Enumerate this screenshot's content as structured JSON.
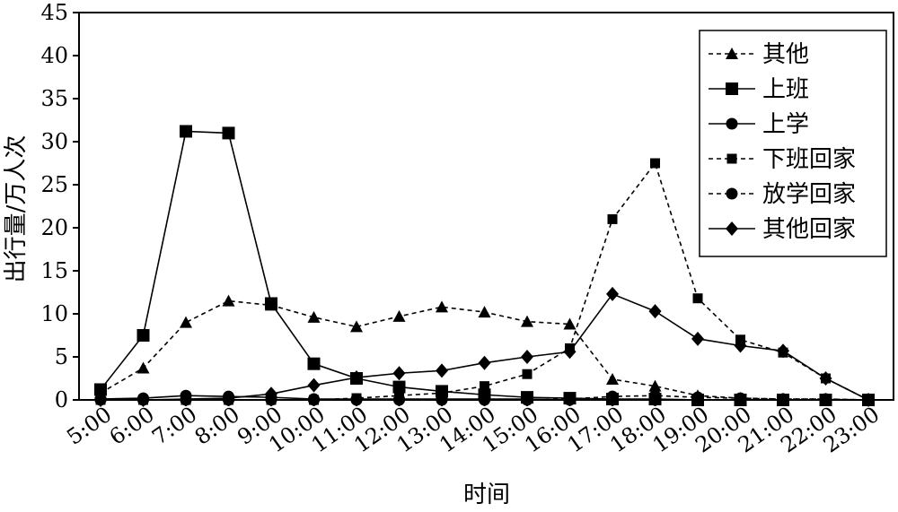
{
  "chart_data": {
    "type": "line",
    "xlabel": "时间",
    "ylabel": "出行量/万人次",
    "ylim": [
      0,
      45
    ],
    "yticks": [
      0,
      5,
      10,
      15,
      20,
      25,
      30,
      35,
      40,
      45
    ],
    "categories": [
      "5:00",
      "6:00",
      "7:00",
      "8:00",
      "9:00",
      "10:00",
      "11:00",
      "12:00",
      "13:00",
      "14:00",
      "15:00",
      "16:00",
      "17:00",
      "18:00",
      "19:00",
      "20:00",
      "21:00",
      "22:00",
      "23:00"
    ],
    "legend_position": "top-right",
    "series": [
      {
        "name": "其他",
        "marker": "triangle",
        "dashed": true,
        "values": [
          0.8,
          3.7,
          9.0,
          11.5,
          11.0,
          9.6,
          8.5,
          9.7,
          10.8,
          10.2,
          9.1,
          8.8,
          2.4,
          1.6,
          0.5,
          0.2,
          0.1,
          0.1,
          0
        ]
      },
      {
        "name": "上班",
        "marker": "square",
        "dashed": false,
        "values": [
          1.2,
          7.5,
          31.2,
          31.0,
          11.2,
          4.2,
          2.5,
          1.5,
          1.0,
          0.6,
          0.3,
          0.2,
          0.1,
          0.1,
          0,
          0,
          0,
          0,
          0
        ]
      },
      {
        "name": "上学",
        "marker": "circle",
        "dashed": false,
        "values": [
          0.1,
          0.2,
          0.5,
          0.4,
          0.3,
          0.1,
          0.1,
          0.1,
          0.1,
          0.1,
          0.1,
          0,
          0,
          0,
          0,
          0,
          0,
          0,
          0
        ]
      },
      {
        "name": "下班回家",
        "marker": "small-square",
        "dashed": true,
        "values": [
          0,
          0,
          0,
          0,
          0,
          0,
          0.2,
          0.5,
          0.8,
          1.6,
          3.0,
          6.0,
          21.0,
          27.5,
          11.8,
          7.0,
          5.5,
          2.5,
          0
        ]
      },
      {
        "name": "放学回家",
        "marker": "circle",
        "dashed": true,
        "values": [
          0,
          0,
          0,
          0,
          0,
          0,
          0,
          0,
          0,
          0,
          0,
          0.1,
          0.4,
          0.5,
          0.3,
          0.2,
          0.1,
          0.1,
          0
        ]
      },
      {
        "name": "其他回家",
        "marker": "diamond",
        "dashed": false,
        "values": [
          0,
          0,
          0.1,
          0.2,
          0.7,
          1.7,
          2.6,
          3.1,
          3.4,
          4.3,
          5.0,
          5.6,
          12.3,
          10.3,
          7.1,
          6.3,
          5.7,
          2.5,
          0
        ]
      }
    ]
  }
}
